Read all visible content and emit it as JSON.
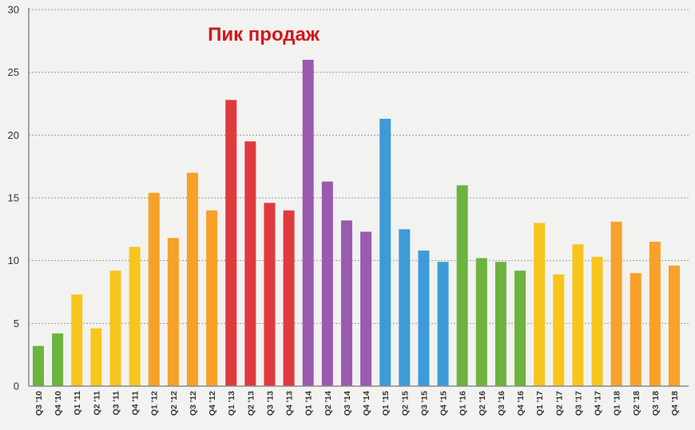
{
  "chart_data": {
    "type": "bar",
    "title": "",
    "xlabel": "",
    "ylabel": "",
    "ylim": [
      0,
      30
    ],
    "yticks": [
      0,
      5,
      10,
      15,
      20,
      25,
      30
    ],
    "grid": true,
    "legend": "none",
    "annotations": [
      {
        "text": "Пик продаж",
        "color": "#d0171b"
      }
    ],
    "categories": [
      "Q3 '10",
      "Q4 '10",
      "Q1 '11",
      "Q2 '11",
      "Q3 '11",
      "Q4 '11",
      "Q1 '12",
      "Q2 '12",
      "Q3 '12",
      "Q4 '12",
      "Q1 '13",
      "Q2 '13",
      "Q3 '13",
      "Q4 '13",
      "Q1 '14",
      "Q2 '14",
      "Q3 '14",
      "Q4 '14",
      "Q1 '15",
      "Q2 '15",
      "Q3 '15",
      "Q4 '15",
      "Q1 '16",
      "Q2 '16",
      "Q3 '16",
      "Q4 '16",
      "Q1 '17",
      "Q2 '17",
      "Q3 '17",
      "Q4 '17",
      "Q1 '18",
      "Q2 '18",
      "Q3 '18",
      "Q4 '18"
    ],
    "values": [
      3.2,
      4.2,
      7.3,
      4.6,
      9.2,
      11.1,
      15.4,
      11.8,
      17.0,
      14.0,
      22.8,
      19.5,
      14.6,
      14.0,
      26.0,
      16.3,
      13.2,
      12.3,
      21.3,
      12.5,
      10.8,
      9.9,
      16.0,
      10.2,
      9.9,
      9.2,
      13.0,
      8.9,
      11.3,
      10.3,
      13.1,
      9.0,
      11.5,
      9.6
    ],
    "bar_colors": [
      "#6db33f",
      "#6db33f",
      "#f7c51e",
      "#f7c51e",
      "#f7c51e",
      "#f7c51e",
      "#f7a128",
      "#f7a128",
      "#f7a128",
      "#f7a128",
      "#e03a3e",
      "#e03a3e",
      "#e03a3e",
      "#e03a3e",
      "#9a5ab0",
      "#9a5ab0",
      "#9a5ab0",
      "#9a5ab0",
      "#3d9bd8",
      "#3d9bd8",
      "#3d9bd8",
      "#3d9bd8",
      "#6db33f",
      "#6db33f",
      "#6db33f",
      "#6db33f",
      "#f7c51e",
      "#f7c51e",
      "#f7c51e",
      "#f7c51e",
      "#f7a128",
      "#f7a128",
      "#f7a128",
      "#f7a128"
    ]
  }
}
